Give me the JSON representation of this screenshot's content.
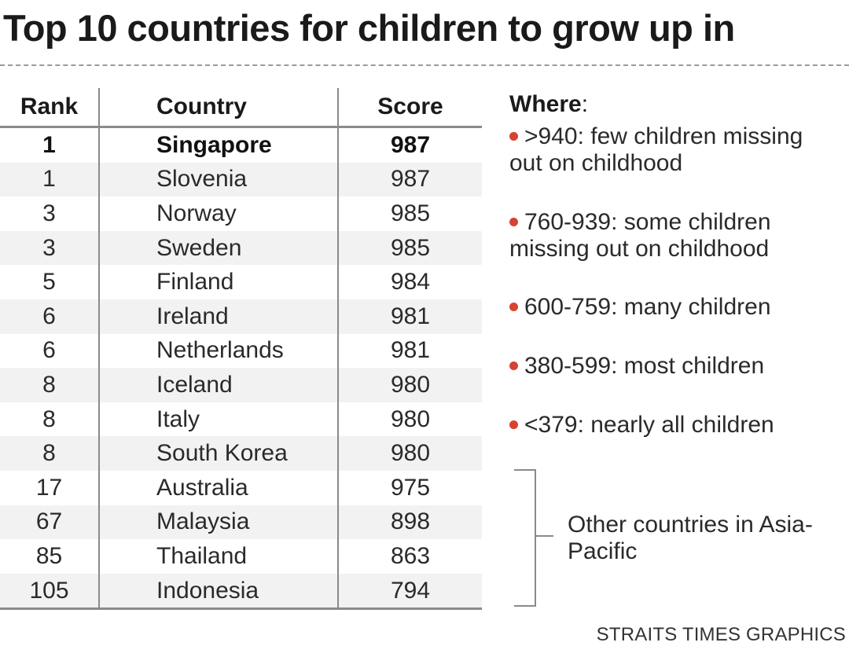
{
  "chart_data": {
    "type": "table",
    "title": "Top 10 countries for children to grow up in",
    "columns": [
      "Rank",
      "Country",
      "Score"
    ],
    "rows": [
      {
        "rank": "1",
        "country": "Singapore",
        "score": 987,
        "highlight": true
      },
      {
        "rank": "1",
        "country": "Slovenia",
        "score": 987
      },
      {
        "rank": "3",
        "country": "Norway",
        "score": 985
      },
      {
        "rank": "3",
        "country": "Sweden",
        "score": 985
      },
      {
        "rank": "5",
        "country": "Finland",
        "score": 984
      },
      {
        "rank": "6",
        "country": "Ireland",
        "score": 981
      },
      {
        "rank": "6",
        "country": "Netherlands",
        "score": 981
      },
      {
        "rank": "8",
        "country": "Iceland",
        "score": 980
      },
      {
        "rank": "8",
        "country": "Italy",
        "score": 980
      },
      {
        "rank": "8",
        "country": "South Korea",
        "score": 980
      },
      {
        "rank": "17",
        "country": "Australia",
        "score": 975
      },
      {
        "rank": "67",
        "country": "Malaysia",
        "score": 898
      },
      {
        "rank": "85",
        "country": "Thailand",
        "score": 863
      },
      {
        "rank": "105",
        "country": "Indonesia",
        "score": 794
      }
    ],
    "legend": {
      "title": "Where",
      "title_suffix": ":",
      "bullet_color": "#d6432f",
      "items": [
        ">940: few children missing out on childhood",
        "760-939: some children missing out on childhood",
        "600-759: many children",
        "380-599: most children",
        "<379: nearly all children"
      ]
    },
    "bracket_note": "Other countries in Asia-Pacific",
    "credit": "STRAITS TIMES GRAPHICS"
  }
}
